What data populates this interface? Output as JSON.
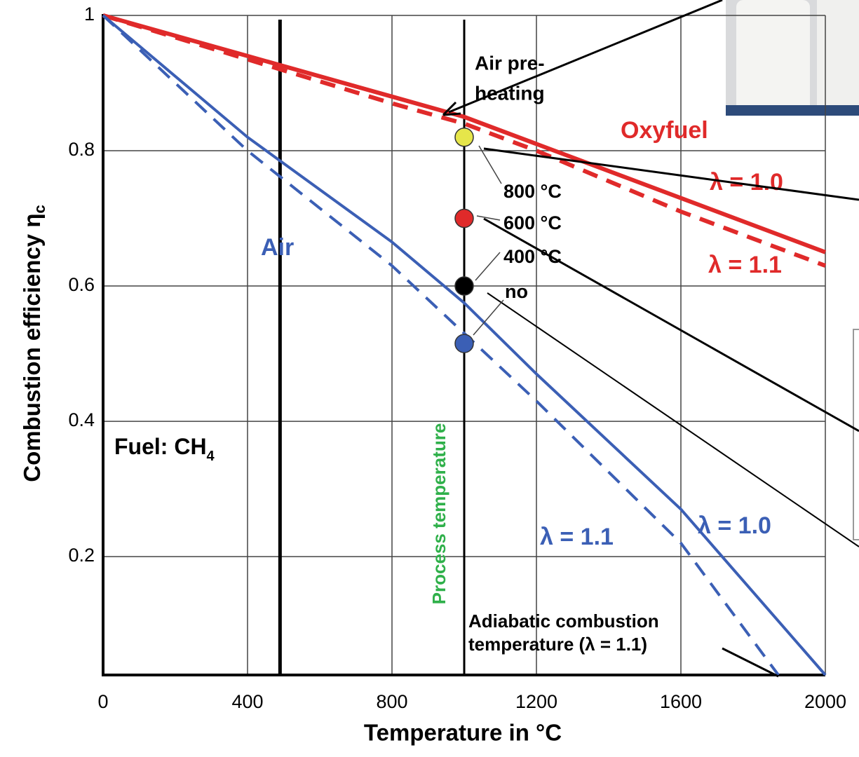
{
  "chart_data": {
    "type": "line",
    "xlabel": "Temperature in °C",
    "ylabel": "Combustion efficiency η",
    "ylabel_sub": "c",
    "xlim": [
      0,
      2000
    ],
    "ylim": [
      0.025,
      1
    ],
    "xticks": [
      0,
      400,
      800,
      1200,
      1600,
      2000
    ],
    "yticks": [
      0.2,
      0.4,
      0.6,
      0.8,
      1
    ],
    "grid": true,
    "series": [
      {
        "name": "λ = 1.0",
        "color": "#e02a2a",
        "dashed": false,
        "x": [
          0,
          400,
          800,
          1000,
          1200,
          1600,
          2000
        ],
        "values": [
          1,
          0.94,
          0.88,
          0.85,
          0.81,
          0.73,
          0.65
        ]
      },
      {
        "name": "λ = 1.1",
        "color": "#e02a2a",
        "dashed": true,
        "x": [
          0,
          400,
          800,
          1000,
          1200,
          1600,
          2000
        ],
        "values": [
          1,
          0.935,
          0.87,
          0.84,
          0.8,
          0.71,
          0.63
        ]
      },
      {
        "name": "λ = 1.0",
        "color": "#3b5fb5",
        "dashed": false,
        "x": [
          0,
          400,
          800,
          1000,
          1200,
          1600,
          2000
        ],
        "values": [
          1,
          0.82,
          0.665,
          0.575,
          0.47,
          0.27,
          0.025
        ]
      },
      {
        "name": "λ = 1.1",
        "color": "#3b5fb5",
        "dashed": true,
        "x": [
          0,
          400,
          800,
          1000,
          1200,
          1600,
          1870
        ],
        "values": [
          1,
          0.8,
          0.63,
          0.53,
          0.43,
          0.22,
          0.025
        ]
      }
    ],
    "vertical_lines": [
      490,
      1000
    ],
    "points": [
      {
        "label": "800 °C",
        "color": "#e6e64a",
        "x": 1000,
        "value": 0.82
      },
      {
        "label": "600 °C",
        "color": "#e02a2a",
        "x": 1000,
        "value": 0.7
      },
      {
        "label": "400 °C",
        "color": "#000000",
        "x": 1000,
        "value": 0.6
      },
      {
        "label": "no",
        "color": "#3b5fb5",
        "x": 1000,
        "value": 0.515
      }
    ],
    "annotations": [
      "Air pre-",
      "heating",
      "Oxyfuel",
      "Air",
      "Fuel: CH",
      "4",
      "Process temperature",
      "Adiabatic combustion",
      "temperature (λ = 1.1)"
    ]
  }
}
